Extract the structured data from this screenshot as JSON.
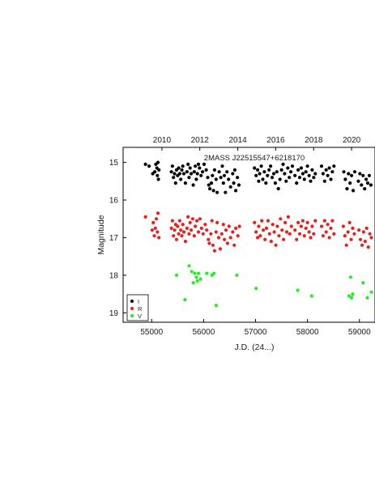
{
  "chart_data": {
    "type": "scatter",
    "title": "2MASS J22515547+6218170",
    "xlabel": "J.D. (24...)",
    "ylabel": "Magnitude",
    "x_top_label": "",
    "xlim": [
      54450,
      59300
    ],
    "ylim": [
      19.25,
      14.6
    ],
    "y_inverted": true,
    "x_ticks": [
      55000,
      56000,
      57000,
      58000,
      59000
    ],
    "x_tick_labels": [
      "55000",
      "56000",
      "57000",
      "58000",
      "59000"
    ],
    "y_ticks": [
      15,
      16,
      17,
      18,
      19
    ],
    "y_tick_labels": [
      "15",
      "16",
      "17",
      "18",
      "19"
    ],
    "top_ticks": [
      55197,
      55927,
      56658,
      57388,
      58119,
      58849
    ],
    "top_tick_labels": [
      "2010",
      "2012",
      "2014",
      "2016",
      "2018",
      "2020"
    ],
    "grid": false,
    "legend": {
      "position": "bottom-left",
      "entries": [
        {
          "label": "I",
          "color": "#000000"
        },
        {
          "label": "R",
          "color": "#ee1c1c"
        },
        {
          "label": "V",
          "color": "#22ee22"
        }
      ]
    },
    "series": [
      {
        "name": "I",
        "color": "#000000",
        "points": [
          [
            54880,
            15.05
          ],
          [
            54950,
            15.1
          ],
          [
            55020,
            15.3
          ],
          [
            55060,
            15.25
          ],
          [
            55080,
            15.05
          ],
          [
            55100,
            15.15
          ],
          [
            55110,
            15.35
          ],
          [
            55120,
            15.0
          ],
          [
            55130,
            15.45
          ],
          [
            55140,
            15.2
          ],
          [
            55380,
            15.25
          ],
          [
            55400,
            15.1
          ],
          [
            55420,
            15.4
          ],
          [
            55440,
            15.3
          ],
          [
            55460,
            15.55
          ],
          [
            55480,
            15.2
          ],
          [
            55500,
            15.35
          ],
          [
            55520,
            15.15
          ],
          [
            55540,
            15.3
          ],
          [
            55560,
            15.45
          ],
          [
            55580,
            15.2
          ],
          [
            55600,
            15.1
          ],
          [
            55620,
            15.3
          ],
          [
            55650,
            15.55
          ],
          [
            55680,
            15.25
          ],
          [
            55700,
            15.05
          ],
          [
            55720,
            15.4
          ],
          [
            55740,
            15.15
          ],
          [
            55760,
            15.3
          ],
          [
            55800,
            15.6
          ],
          [
            55820,
            15.25
          ],
          [
            55840,
            15.1
          ],
          [
            55860,
            15.45
          ],
          [
            55880,
            15.3
          ],
          [
            55900,
            15.05
          ],
          [
            55920,
            15.15
          ],
          [
            55950,
            15.35
          ],
          [
            55980,
            15.25
          ],
          [
            56010,
            15.05
          ],
          [
            56050,
            15.2
          ],
          [
            56080,
            15.4
          ],
          [
            56100,
            15.6
          ],
          [
            56120,
            15.7
          ],
          [
            56150,
            15.55
          ],
          [
            56170,
            15.35
          ],
          [
            56190,
            15.75
          ],
          [
            56210,
            15.2
          ],
          [
            56240,
            15.45
          ],
          [
            56260,
            15.8
          ],
          [
            56300,
            15.25
          ],
          [
            56330,
            15.4
          ],
          [
            56360,
            15.1
          ],
          [
            56380,
            15.55
          ],
          [
            56400,
            15.35
          ],
          [
            56420,
            15.8
          ],
          [
            56450,
            15.25
          ],
          [
            56480,
            15.45
          ],
          [
            56520,
            15.65
          ],
          [
            56560,
            15.3
          ],
          [
            56580,
            15.55
          ],
          [
            56600,
            15.2
          ],
          [
            56620,
            15.75
          ],
          [
            56650,
            15.4
          ],
          [
            56680,
            15.6
          ],
          [
            56980,
            15.15
          ],
          [
            57010,
            15.35
          ],
          [
            57040,
            15.2
          ],
          [
            57060,
            15.5
          ],
          [
            57080,
            15.3
          ],
          [
            57110,
            15.1
          ],
          [
            57140,
            15.45
          ],
          [
            57170,
            15.25
          ],
          [
            57200,
            15.55
          ],
          [
            57230,
            15.35
          ],
          [
            57260,
            15.2
          ],
          [
            57290,
            15.1
          ],
          [
            57320,
            15.4
          ],
          [
            57350,
            15.3
          ],
          [
            57380,
            15.55
          ],
          [
            57410,
            15.25
          ],
          [
            57440,
            15.7
          ],
          [
            57470,
            15.45
          ],
          [
            57500,
            15.2
          ],
          [
            57530,
            15.05
          ],
          [
            57560,
            15.3
          ],
          [
            57590,
            15.5
          ],
          [
            57620,
            15.15
          ],
          [
            57650,
            15.4
          ],
          [
            57680,
            15.25
          ],
          [
            57710,
            15.1
          ],
          [
            57760,
            15.35
          ],
          [
            57790,
            15.55
          ],
          [
            57820,
            15.2
          ],
          [
            57850,
            15.4
          ],
          [
            57880,
            15.15
          ],
          [
            57910,
            15.3
          ],
          [
            57940,
            15.45
          ],
          [
            57970,
            15.25
          ],
          [
            58000,
            15.1
          ],
          [
            58030,
            15.35
          ],
          [
            58060,
            15.5
          ],
          [
            58090,
            15.2
          ],
          [
            58120,
            15.4
          ],
          [
            58150,
            15.3
          ],
          [
            58270,
            15.1
          ],
          [
            58300,
            15.3
          ],
          [
            58330,
            15.5
          ],
          [
            58360,
            15.2
          ],
          [
            58390,
            15.35
          ],
          [
            58420,
            15.15
          ],
          [
            58450,
            15.45
          ],
          [
            58480,
            15.25
          ],
          [
            58510,
            15.1
          ],
          [
            58700,
            15.25
          ],
          [
            58730,
            15.45
          ],
          [
            58760,
            15.7
          ],
          [
            58790,
            15.3
          ],
          [
            58820,
            15.55
          ],
          [
            58850,
            15.35
          ],
          [
            58880,
            15.75
          ],
          [
            58910,
            15.25
          ],
          [
            58980,
            15.5
          ],
          [
            59010,
            15.3
          ],
          [
            59040,
            15.6
          ],
          [
            59070,
            15.35
          ],
          [
            59100,
            15.7
          ],
          [
            59130,
            15.45
          ],
          [
            59160,
            15.55
          ],
          [
            59190,
            15.35
          ],
          [
            59220,
            15.6
          ]
        ]
      },
      {
        "name": "R",
        "color": "#ee1c1c",
        "points": [
          [
            54880,
            16.45
          ],
          [
            55010,
            16.8
          ],
          [
            55030,
            16.6
          ],
          [
            55050,
            16.95
          ],
          [
            55070,
            16.75
          ],
          [
            55090,
            16.5
          ],
          [
            55110,
            16.85
          ],
          [
            55120,
            16.35
          ],
          [
            55140,
            17.0
          ],
          [
            55380,
            16.75
          ],
          [
            55400,
            16.55
          ],
          [
            55420,
            16.95
          ],
          [
            55440,
            16.8
          ],
          [
            55460,
            16.65
          ],
          [
            55480,
            17.05
          ],
          [
            55500,
            16.7
          ],
          [
            55520,
            16.9
          ],
          [
            55540,
            16.55
          ],
          [
            55560,
            16.8
          ],
          [
            55580,
            16.95
          ],
          [
            55600,
            16.65
          ],
          [
            55620,
            16.85
          ],
          [
            55650,
            17.1
          ],
          [
            55680,
            16.75
          ],
          [
            55700,
            16.45
          ],
          [
            55720,
            16.9
          ],
          [
            55740,
            16.6
          ],
          [
            55760,
            16.8
          ],
          [
            55790,
            16.5
          ],
          [
            55820,
            16.95
          ],
          [
            55840,
            16.7
          ],
          [
            55870,
            16.55
          ],
          [
            55900,
            16.85
          ],
          [
            55930,
            16.5
          ],
          [
            55960,
            16.75
          ],
          [
            55990,
            16.9
          ],
          [
            56030,
            16.65
          ],
          [
            56060,
            16.8
          ],
          [
            56090,
            17.05
          ],
          [
            56110,
            17.15
          ],
          [
            56140,
            16.9
          ],
          [
            56160,
            16.55
          ],
          [
            56180,
            17.2
          ],
          [
            56210,
            17.35
          ],
          [
            56240,
            16.85
          ],
          [
            56260,
            16.6
          ],
          [
            56290,
            17.0
          ],
          [
            56320,
            17.3
          ],
          [
            56350,
            16.9
          ],
          [
            56380,
            16.65
          ],
          [
            56400,
            17.05
          ],
          [
            56430,
            16.8
          ],
          [
            56460,
            17.15
          ],
          [
            56490,
            16.7
          ],
          [
            56520,
            17.0
          ],
          [
            56560,
            16.85
          ],
          [
            56590,
            17.2
          ],
          [
            56620,
            16.75
          ],
          [
            56660,
            16.95
          ],
          [
            56690,
            16.7
          ],
          [
            56980,
            16.6
          ],
          [
            57010,
            16.85
          ],
          [
            57040,
            17.0
          ],
          [
            57060,
            16.7
          ],
          [
            57090,
            16.95
          ],
          [
            57120,
            16.55
          ],
          [
            57150,
            16.8
          ],
          [
            57180,
            17.05
          ],
          [
            57210,
            16.75
          ],
          [
            57240,
            16.55
          ],
          [
            57270,
            16.9
          ],
          [
            57300,
            17.1
          ],
          [
            57330,
            16.65
          ],
          [
            57360,
            16.85
          ],
          [
            57390,
            17.2
          ],
          [
            57420,
            16.7
          ],
          [
            57450,
            16.95
          ],
          [
            57480,
            16.5
          ],
          [
            57510,
            16.8
          ],
          [
            57540,
            17.05
          ],
          [
            57570,
            16.6
          ],
          [
            57600,
            16.85
          ],
          [
            57630,
            16.45
          ],
          [
            57660,
            16.9
          ],
          [
            57690,
            16.7
          ],
          [
            57760,
            16.8
          ],
          [
            57790,
            17.05
          ],
          [
            57820,
            16.6
          ],
          [
            57850,
            16.9
          ],
          [
            57880,
            16.7
          ],
          [
            57910,
            16.55
          ],
          [
            57940,
            16.95
          ],
          [
            57970,
            16.75
          ],
          [
            58000,
            16.6
          ],
          [
            58030,
            16.85
          ],
          [
            58060,
            17.0
          ],
          [
            58090,
            16.7
          ],
          [
            58120,
            16.9
          ],
          [
            58150,
            16.55
          ],
          [
            58270,
            16.7
          ],
          [
            58300,
            16.95
          ],
          [
            58330,
            16.55
          ],
          [
            58360,
            16.85
          ],
          [
            58390,
            16.65
          ],
          [
            58420,
            17.0
          ],
          [
            58450,
            16.75
          ],
          [
            58480,
            16.55
          ],
          [
            58510,
            16.9
          ],
          [
            58690,
            16.7
          ],
          [
            58720,
            16.95
          ],
          [
            58750,
            17.2
          ],
          [
            58780,
            16.85
          ],
          [
            58810,
            16.6
          ],
          [
            58840,
            17.05
          ],
          [
            58870,
            16.75
          ],
          [
            58900,
            16.9
          ],
          [
            58990,
            16.8
          ],
          [
            59020,
            17.05
          ],
          [
            59050,
            17.2
          ],
          [
            59080,
            16.85
          ],
          [
            59110,
            17.1
          ],
          [
            59140,
            16.75
          ],
          [
            59170,
            17.25
          ],
          [
            59200,
            16.9
          ],
          [
            59230,
            17.0
          ]
        ]
      },
      {
        "name": "V",
        "color": "#22ee22",
        "points": [
          [
            55480,
            18.0
          ],
          [
            55640,
            18.65
          ],
          [
            55720,
            17.75
          ],
          [
            55770,
            17.9
          ],
          [
            55800,
            18.2
          ],
          [
            55830,
            17.95
          ],
          [
            55860,
            18.05
          ],
          [
            55880,
            18.15
          ],
          [
            55900,
            17.95
          ],
          [
            55940,
            18.1
          ],
          [
            56060,
            17.95
          ],
          [
            56160,
            18.0
          ],
          [
            56200,
            17.95
          ],
          [
            56240,
            18.8
          ],
          [
            56640,
            18.0
          ],
          [
            57010,
            18.35
          ],
          [
            57810,
            18.4
          ],
          [
            58080,
            18.55
          ],
          [
            58800,
            18.55
          ],
          [
            58830,
            18.05
          ],
          [
            58850,
            18.6
          ],
          [
            58870,
            18.5
          ],
          [
            59070,
            18.2
          ],
          [
            59150,
            18.6
          ],
          [
            59230,
            18.45
          ]
        ]
      }
    ]
  }
}
